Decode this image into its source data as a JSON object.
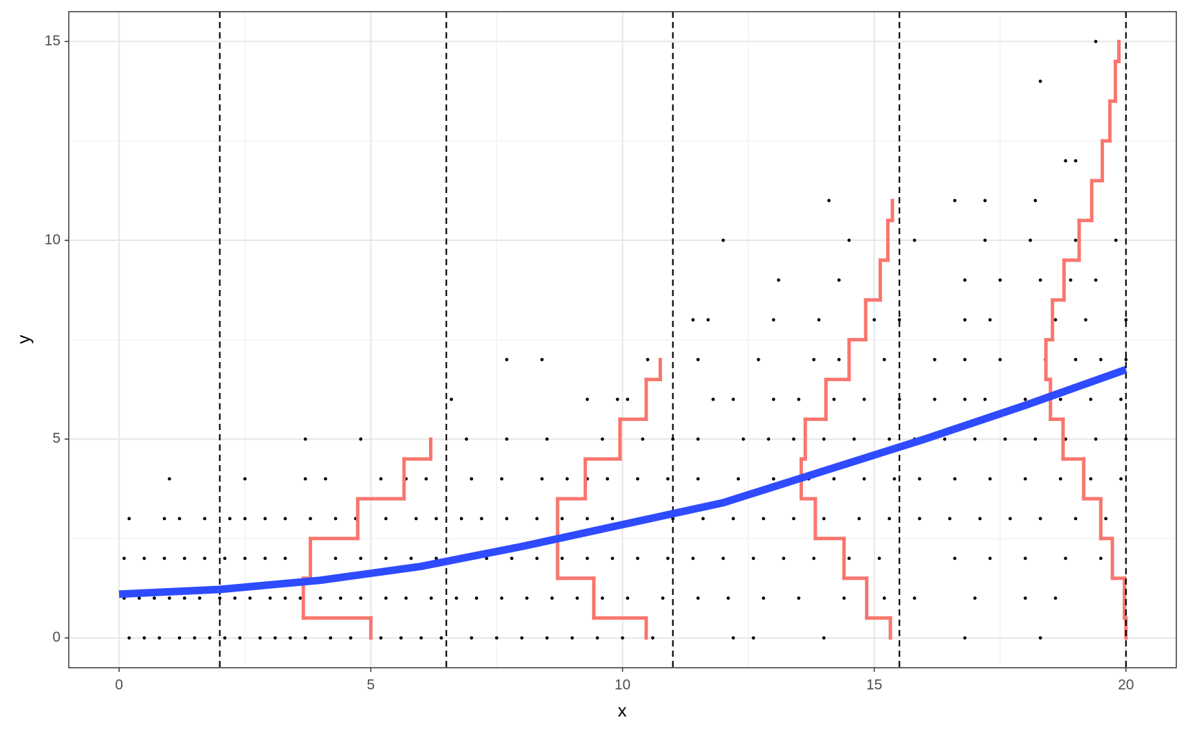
{
  "chart_data": {
    "type": "scatter",
    "xlabel": "x",
    "ylabel": "y",
    "xlim": [
      -1,
      21
    ],
    "ylim": [
      -0.75,
      15.75
    ],
    "xticks": [
      0,
      5,
      10,
      15,
      20
    ],
    "yticks": [
      0,
      5,
      10,
      15
    ],
    "grid": true,
    "series": [
      {
        "kind": "points",
        "color": "#000000",
        "x": [
          0.2,
          0.5,
          0.8,
          1.2,
          1.5,
          1.8,
          2.1,
          2.4,
          2.8,
          3.1,
          3.4,
          3.7,
          4.2,
          4.6,
          5.2,
          5.6,
          6.0,
          6.4,
          7.0,
          7.5,
          8.0,
          8.5,
          9.0,
          9.5,
          10.0,
          10.6,
          12.2,
          12.6,
          14.0,
          16.8,
          18.3,
          0.1,
          0.4,
          0.7,
          1.0,
          1.3,
          1.6,
          2.0,
          2.3,
          2.6,
          3.0,
          3.3,
          3.6,
          4.0,
          4.4,
          4.8,
          5.3,
          5.7,
          6.2,
          6.7,
          7.1,
          7.6,
          8.1,
          8.6,
          9.1,
          9.6,
          10.1,
          10.8,
          11.5,
          12.1,
          12.8,
          13.5,
          14.4,
          15.2,
          15.8,
          17.0,
          18.0,
          18.6,
          0.1,
          0.5,
          0.9,
          1.3,
          1.7,
          2.1,
          2.5,
          2.9,
          3.3,
          3.8,
          4.3,
          4.8,
          5.3,
          5.8,
          6.3,
          6.8,
          7.3,
          7.8,
          8.3,
          8.8,
          9.3,
          9.8,
          10.3,
          10.9,
          11.4,
          12.0,
          12.6,
          13.2,
          13.8,
          14.5,
          15.1,
          16.6,
          17.3,
          18.0,
          18.8,
          19.5,
          0.2,
          0.9,
          1.2,
          1.7,
          2.2,
          2.5,
          2.9,
          3.3,
          3.8,
          4.3,
          4.7,
          5.3,
          5.9,
          6.3,
          6.8,
          7.2,
          7.7,
          8.3,
          8.8,
          9.3,
          9.8,
          10.4,
          11.0,
          11.6,
          12.2,
          12.8,
          13.4,
          14.0,
          14.7,
          15.3,
          15.9,
          16.5,
          17.1,
          17.7,
          18.3,
          19.0,
          19.6,
          1.0,
          2.5,
          3.7,
          4.1,
          5.2,
          5.7,
          6.1,
          7.0,
          7.6,
          8.4,
          8.9,
          9.3,
          9.7,
          10.3,
          10.9,
          11.5,
          12.3,
          13.0,
          13.7,
          14.2,
          14.8,
          15.4,
          15.9,
          16.6,
          17.3,
          18.0,
          18.7,
          19.3,
          19.9,
          3.7,
          4.8,
          6.9,
          7.7,
          8.5,
          9.6,
          10.4,
          11.0,
          11.5,
          12.4,
          12.9,
          13.4,
          14.0,
          14.6,
          15.3,
          15.8,
          16.4,
          17.0,
          17.6,
          18.2,
          18.8,
          19.4,
          20.0,
          6.6,
          9.3,
          9.9,
          10.1,
          11.8,
          12.2,
          13.0,
          13.5,
          14.2,
          14.8,
          15.5,
          16.2,
          16.8,
          17.2,
          18.0,
          18.7,
          19.3,
          19.9,
          7.7,
          8.4,
          10.5,
          11.5,
          12.7,
          13.8,
          14.3,
          15.2,
          16.2,
          16.8,
          17.5,
          18.4,
          19.0,
          19.5,
          20.0,
          11.4,
          11.7,
          13.0,
          13.9,
          15.0,
          15.5,
          16.8,
          17.3,
          18.6,
          19.2,
          20.0,
          13.1,
          14.3,
          16.8,
          17.5,
          18.3,
          18.9,
          19.4,
          12.0,
          14.5,
          15.8,
          17.2,
          18.1,
          19.0,
          19.8,
          14.1,
          16.6,
          17.2,
          18.2,
          18.8,
          19.0,
          18.3,
          19.4
        ],
        "y": [
          0,
          0,
          0,
          0,
          0,
          0,
          0,
          0,
          0,
          0,
          0,
          0,
          0,
          0,
          0,
          0,
          0,
          0,
          0,
          0,
          0,
          0,
          0,
          0,
          0,
          0,
          0,
          0,
          0,
          0,
          0,
          1,
          1,
          1,
          1,
          1,
          1,
          1,
          1,
          1,
          1,
          1,
          1,
          1,
          1,
          1,
          1,
          1,
          1,
          1,
          1,
          1,
          1,
          1,
          1,
          1,
          1,
          1,
          1,
          1,
          1,
          1,
          1,
          1,
          1,
          1,
          1,
          1,
          2,
          2,
          2,
          2,
          2,
          2,
          2,
          2,
          2,
          2,
          2,
          2,
          2,
          2,
          2,
          2,
          2,
          2,
          2,
          2,
          2,
          2,
          2,
          2,
          2,
          2,
          2,
          2,
          2,
          2,
          2,
          2,
          2,
          2,
          2,
          2,
          3,
          3,
          3,
          3,
          3,
          3,
          3,
          3,
          3,
          3,
          3,
          3,
          3,
          3,
          3,
          3,
          3,
          3,
          3,
          3,
          3,
          3,
          3,
          3,
          3,
          3,
          3,
          3,
          3,
          3,
          3,
          3,
          3,
          3,
          3,
          3,
          3,
          4,
          4,
          4,
          4,
          4,
          4,
          4,
          4,
          4,
          4,
          4,
          4,
          4,
          4,
          4,
          4,
          4,
          4,
          4,
          4,
          4,
          4,
          4,
          4,
          4,
          4,
          4,
          4,
          4,
          5,
          5,
          5,
          5,
          5,
          5,
          5,
          5,
          5,
          5,
          5,
          5,
          5,
          5,
          5,
          5,
          5,
          5,
          5,
          5,
          5,
          5,
          5,
          6,
          6,
          6,
          6,
          6,
          6,
          6,
          6,
          6,
          6,
          6,
          6,
          6,
          6,
          6,
          6,
          6,
          6,
          7,
          7,
          7,
          7,
          7,
          7,
          7,
          7,
          7,
          7,
          7,
          7,
          7,
          7,
          7,
          8,
          8,
          8,
          8,
          8,
          8,
          8,
          8,
          8,
          8,
          8,
          9,
          9,
          9,
          9,
          9,
          9,
          9,
          10,
          10,
          10,
          10,
          10,
          10,
          10,
          11,
          11,
          11,
          11,
          12,
          12,
          14,
          15
        ]
      },
      {
        "kind": "line",
        "color": "#2e4bff",
        "x": [
          0,
          2,
          4,
          6,
          8,
          10,
          12,
          14,
          16,
          18,
          20
        ],
        "y": [
          1.1,
          1.22,
          1.45,
          1.8,
          2.3,
          2.85,
          3.4,
          4.2,
          5.0,
          5.85,
          6.75
        ]
      },
      {
        "kind": "vline",
        "color": "#000000",
        "x": [
          2,
          6.5,
          11,
          15.5,
          20
        ]
      },
      {
        "kind": "step",
        "color": "#f8766d",
        "y": [
          0,
          1,
          2,
          3,
          4,
          5
        ],
        "x": [
          5.0,
          3.66,
          3.8,
          4.74,
          5.66,
          6.19
        ]
      },
      {
        "kind": "step",
        "color": "#f8766d",
        "y": [
          0,
          1,
          2,
          3,
          4,
          5,
          6,
          7
        ],
        "x": [
          10.47,
          9.43,
          8.71,
          8.71,
          9.26,
          9.95,
          10.47,
          10.75
        ]
      },
      {
        "kind": "step",
        "color": "#f8766d",
        "y": [
          0,
          1,
          2,
          3,
          4,
          5,
          6,
          7,
          8,
          9,
          10,
          11
        ],
        "x": [
          15.32,
          14.85,
          14.4,
          13.83,
          13.55,
          13.63,
          14.04,
          14.5,
          14.83,
          15.12,
          15.27,
          15.36
        ]
      },
      {
        "kind": "step",
        "color": "#f8766d",
        "y": [
          0,
          1,
          2,
          3,
          4,
          5,
          6,
          7,
          8,
          9,
          10,
          11,
          12,
          13,
          14,
          15
        ],
        "x": [
          20.0,
          19.97,
          19.73,
          19.5,
          19.16,
          18.75,
          18.5,
          18.41,
          18.54,
          18.77,
          19.07,
          19.32,
          19.53,
          19.68,
          19.79,
          19.86
        ]
      }
    ]
  }
}
